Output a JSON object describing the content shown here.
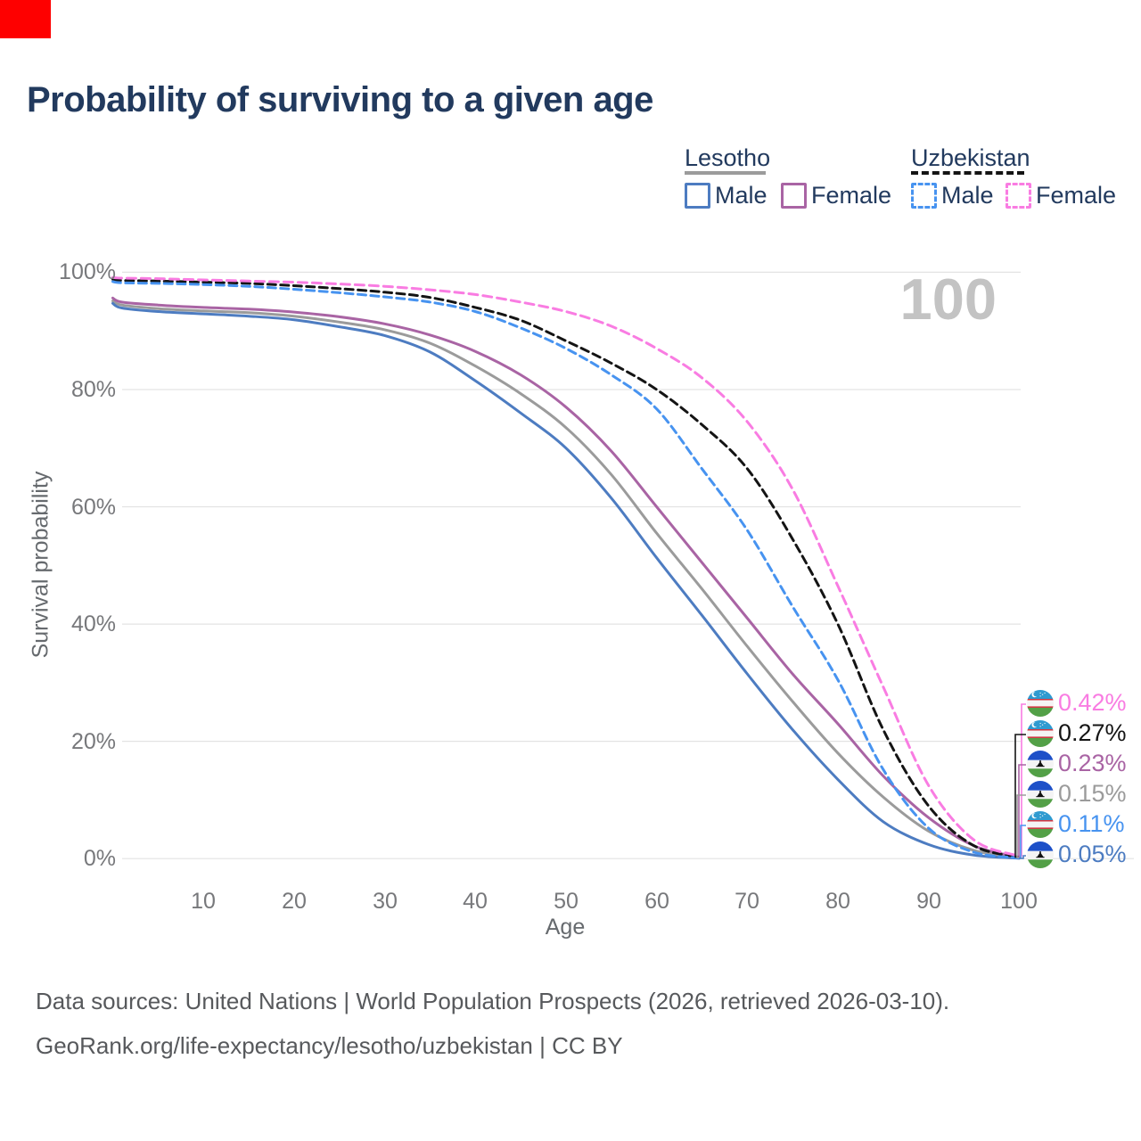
{
  "title": "Probability of surviving to a given age",
  "watermark": "100",
  "top_left_marker": {
    "color": "#fe0000"
  },
  "legend": {
    "groups": [
      {
        "label": "Lesotho",
        "style": "solid",
        "underline_color": "#9b9b9b",
        "items": [
          {
            "label": "Male",
            "color": "#4d7cc1"
          },
          {
            "label": "Female",
            "color": "#a964a4"
          }
        ]
      },
      {
        "label": "Uzbekistan",
        "style": "dashed",
        "underline_color": "#141414",
        "items": [
          {
            "label": "Male",
            "color": "#4793f0"
          },
          {
            "label": "Female",
            "color": "#f97ce2"
          }
        ]
      }
    ]
  },
  "chart_data": {
    "type": "line",
    "title": "Probability of surviving to a given age",
    "xlabel": "Age",
    "ylabel": "Survival probability",
    "xlim": [
      0,
      100
    ],
    "ylim": [
      0,
      100
    ],
    "grid": "horizontal",
    "x_ticks": [
      10,
      20,
      30,
      40,
      50,
      60,
      70,
      80,
      90,
      100
    ],
    "y_tick_values": [
      0,
      20,
      40,
      60,
      80,
      100
    ],
    "y_tick_labels": [
      "0%",
      "20%",
      "40%",
      "60%",
      "80%",
      "100%"
    ],
    "x": [
      0,
      1,
      5,
      10,
      15,
      20,
      25,
      30,
      35,
      40,
      45,
      50,
      55,
      60,
      65,
      70,
      75,
      80,
      85,
      90,
      95,
      100
    ],
    "series": [
      {
        "name": "Uzbekistan Female",
        "country": "Uzbekistan",
        "sex": "Female",
        "flag": "uzbekistan",
        "style": "dashed",
        "color": "#f97ce2",
        "end_label": "0.42%",
        "values": [
          99.1,
          99.0,
          98.9,
          98.7,
          98.5,
          98.3,
          98.0,
          97.6,
          97.0,
          96.2,
          94.9,
          93.3,
          90.8,
          87.0,
          82.0,
          74.5,
          63.0,
          46.5,
          29.3,
          12.5,
          3.2,
          0.42
        ]
      },
      {
        "name": "Uzbekistan Both sexes",
        "country": "Uzbekistan",
        "sex": "Both",
        "flag": "uzbekistan",
        "style": "dashed",
        "color": "#141414",
        "end_label": "0.27%",
        "values": [
          98.8,
          98.6,
          98.5,
          98.3,
          98.1,
          97.7,
          97.2,
          96.6,
          95.7,
          94.0,
          91.8,
          88.3,
          84.5,
          80.0,
          74.0,
          66.5,
          54.5,
          40.0,
          22.0,
          9.0,
          2.2,
          0.27
        ]
      },
      {
        "name": "Lesotho Female",
        "country": "Lesotho",
        "sex": "Female",
        "flag": "lesotho",
        "style": "solid",
        "color": "#a964a4",
        "end_label": "0.23%",
        "values": [
          95.6,
          94.9,
          94.4,
          94.0,
          93.7,
          93.2,
          92.4,
          91.2,
          89.3,
          86.5,
          82.5,
          77.0,
          69.5,
          60.0,
          50.5,
          41.0,
          31.5,
          23.0,
          14.1,
          7.0,
          2.2,
          0.23
        ]
      },
      {
        "name": "Lesotho Both sexes",
        "country": "Lesotho",
        "sex": "Both",
        "flag": "lesotho",
        "style": "solid",
        "color": "#9b9b9b",
        "end_label": "0.15%",
        "values": [
          95.1,
          94.4,
          93.8,
          93.4,
          93.1,
          92.5,
          91.5,
          90.2,
          87.9,
          84.0,
          79.3,
          73.5,
          65.5,
          55.5,
          46.0,
          36.2,
          26.8,
          18.0,
          10.5,
          4.7,
          1.4,
          0.15
        ]
      },
      {
        "name": "Uzbekistan Male",
        "country": "Uzbekistan",
        "sex": "Male",
        "flag": "uzbekistan",
        "style": "dashed",
        "color": "#4793f0",
        "end_label": "0.11%",
        "values": [
          98.4,
          98.2,
          98.1,
          97.9,
          97.6,
          97.1,
          96.5,
          95.8,
          94.9,
          93.3,
          90.5,
          87.0,
          82.5,
          76.7,
          66.5,
          56.0,
          43.0,
          30.5,
          15.2,
          5.2,
          1.1,
          0.11
        ]
      },
      {
        "name": "Lesotho Male",
        "country": "Lesotho",
        "sex": "Male",
        "flag": "lesotho",
        "style": "solid",
        "color": "#4d7cc1",
        "end_label": "0.05%",
        "values": [
          94.7,
          93.9,
          93.3,
          92.9,
          92.5,
          91.9,
          90.7,
          89.2,
          86.4,
          81.5,
          76.0,
          70.0,
          61.5,
          51.3,
          41.5,
          31.5,
          22.0,
          13.5,
          6.3,
          2.4,
          0.6,
          0.05
        ]
      }
    ]
  },
  "footer": {
    "line1": "Data sources: United Nations | World Population Prospects (2026, retrieved 2026-03-10).",
    "line2": "GeoRank.org/life-expectancy/lesotho/uzbekistan | CC BY"
  }
}
